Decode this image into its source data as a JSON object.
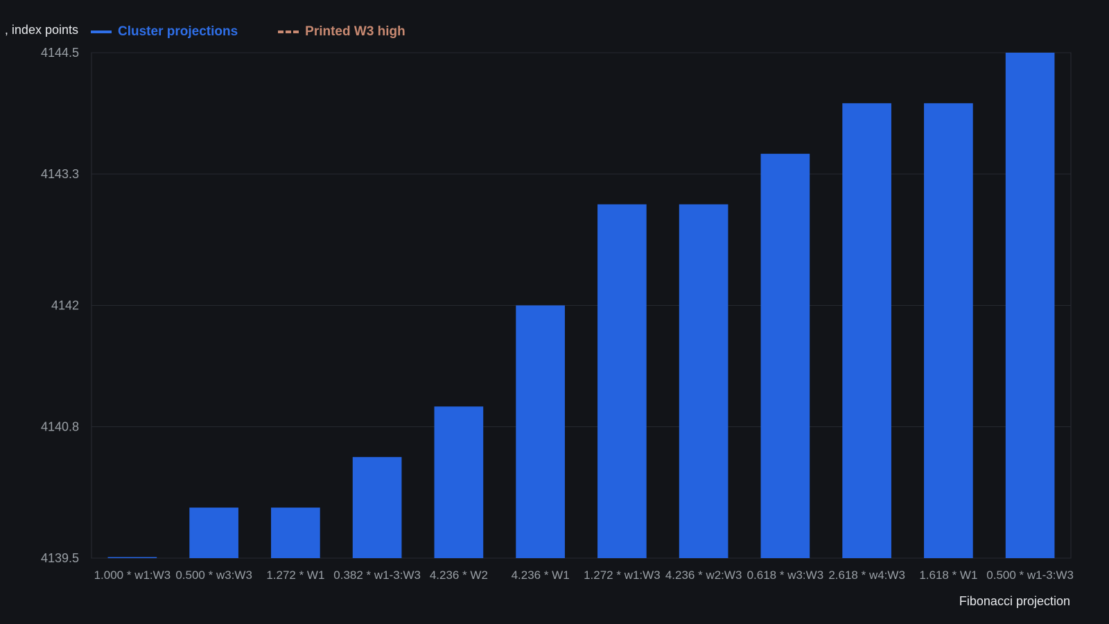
{
  "chart_data": {
    "type": "bar",
    "ylabel": ", index points",
    "xlabel": "Fibonacci projection",
    "legend": [
      {
        "label": "Cluster projections",
        "color": "#2f6fe8",
        "style": "solid"
      },
      {
        "label": "Printed W3 high",
        "color": "#c98a72",
        "style": "dashed"
      }
    ],
    "legend_position": "top-left",
    "ylim": [
      4139.5,
      4144.5
    ],
    "yticks": [
      "4139.5",
      "4140.8",
      "4142",
      "4143.3",
      "4144.5"
    ],
    "grid": true,
    "categories": [
      "1.000 * w1:W3",
      "0.500 * w3:W3",
      "1.272 * W1",
      "0.382 * w1-3:W3",
      "4.236 * W2",
      "4.236 * W1",
      "1.272 * w1:W3",
      "4.236 * w2:W3",
      "0.618 * w3:W3",
      "2.618 * w4:W3",
      "1.618 * W1",
      "0.500 * w1-3:W3"
    ],
    "series": [
      {
        "name": "Cluster projections",
        "color": "#2563df",
        "values": [
          4139.5,
          4140.0,
          4140.0,
          4140.5,
          4141.0,
          4142.0,
          4143.0,
          4143.0,
          4143.5,
          4144.0,
          4144.0,
          4144.5
        ]
      }
    ]
  }
}
